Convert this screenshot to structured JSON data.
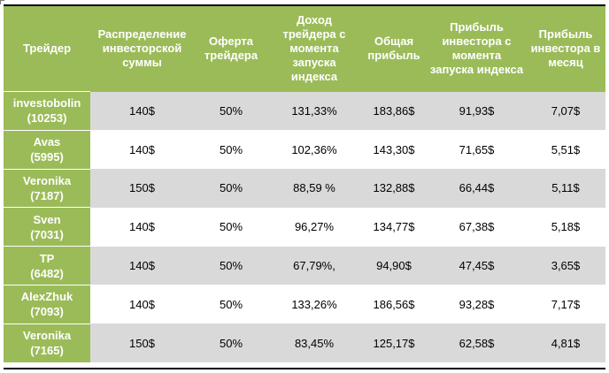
{
  "table": {
    "headers": [
      "Трейдер",
      "Распределение инвесторской суммы",
      "Оферта трейдера",
      "Доход трейдера с момента запуска индекса",
      "Общая прибыль",
      "Прибыль инвестора с момента запуска индекса",
      "Прибыль инвестора в месяц"
    ],
    "rows": [
      {
        "trader": "investobolin",
        "id": "(10253)",
        "cells": [
          "140$",
          "50%",
          "131,33%",
          "183,86$",
          "91,93$",
          "7,07$"
        ]
      },
      {
        "trader": "Avas",
        "id": "(5995)",
        "cells": [
          "140$",
          "50%",
          "102,36%",
          "143,30$",
          "71,65$",
          "5,51$"
        ]
      },
      {
        "trader": "Veronika",
        "id": "(7187)",
        "cells": [
          "150$",
          "50%",
          "88,59 %",
          "132,88$",
          "66,44$",
          "5,11$"
        ]
      },
      {
        "trader": "Sven",
        "id": "(7031)",
        "cells": [
          "140$",
          "50%",
          "96,27%",
          "134,77$",
          "67,38$",
          "5,18$"
        ]
      },
      {
        "trader": "TP",
        "id": "(6482)",
        "cells": [
          "140$",
          "50%",
          "67,79%,",
          "94,90$",
          "47,45$",
          "3,65$"
        ]
      },
      {
        "trader": "AlexZhuk",
        "id": "(7093)",
        "cells": [
          "140$",
          "50%",
          "133,26%",
          "186,56$",
          "93,28$",
          "7,17$"
        ]
      },
      {
        "trader": "Veronika",
        "id": "(7165)",
        "cells": [
          "150$",
          "50%",
          "83,45%",
          "125,17$",
          "62,58$",
          "4,81$"
        ]
      }
    ]
  },
  "colors": {
    "header_green": "#9bbb59",
    "row_gray": "#d9d9d9",
    "row_white": "#ffffff"
  }
}
